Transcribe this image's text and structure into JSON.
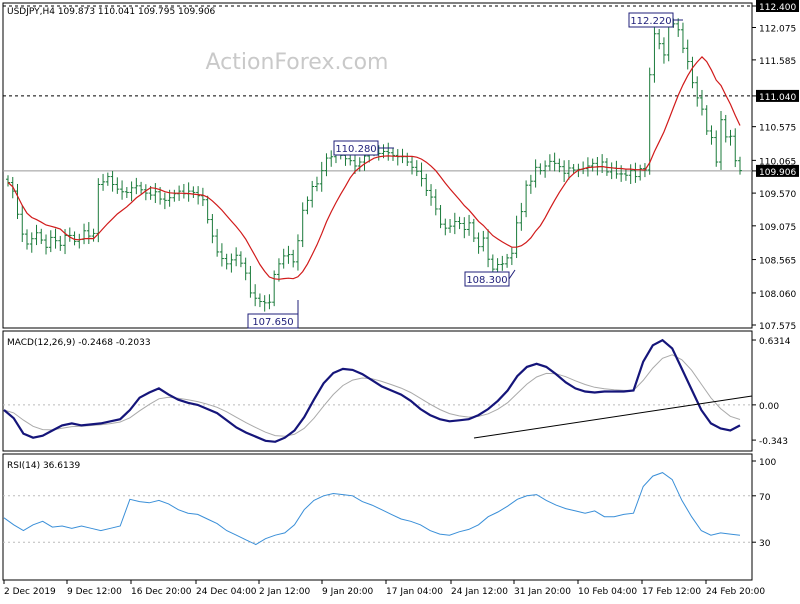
{
  "chart_data": [
    {
      "type": "candlestick",
      "header": "USDJPY,H4  109.873 110.041 109.795 109.906",
      "watermark": "ActionForex.com",
      "y_ticks": [
        "112.400",
        "112.075",
        "111.585",
        "111.040",
        "110.575",
        "110.065",
        "109.906",
        "109.570",
        "109.075",
        "108.565",
        "108.060",
        "107.575"
      ],
      "y_tick_values": [
        112.4,
        112.075,
        111.585,
        111.04,
        110.575,
        110.065,
        109.906,
        109.57,
        109.075,
        108.565,
        108.06,
        107.575
      ],
      "y_range": [
        107.575,
        112.4
      ],
      "highlighted_levels": [
        112.4,
        111.04,
        109.906
      ],
      "current_price": 109.906,
      "callouts": [
        {
          "label": "112.220",
          "value": 112.22
        },
        {
          "label": "110.280",
          "value": 110.28
        },
        {
          "label": "107.650",
          "value": 107.65
        },
        {
          "label": "108.300",
          "value": 108.3
        }
      ],
      "close_series": [
        109.73,
        109.6,
        109.25,
        108.95,
        108.8,
        108.88,
        108.97,
        108.86,
        108.75,
        108.9,
        108.85,
        108.78,
        108.93,
        108.93,
        108.84,
        108.87,
        109.0,
        108.92,
        108.96,
        109.7,
        109.74,
        109.82,
        109.7,
        109.63,
        109.59,
        109.58,
        109.65,
        109.68,
        109.62,
        109.57,
        109.54,
        109.59,
        109.48,
        109.46,
        109.5,
        109.56,
        109.6,
        109.56,
        109.6,
        109.58,
        109.53,
        109.47,
        109.17,
        108.92,
        108.68,
        108.58,
        108.5,
        108.56,
        108.63,
        108.51,
        108.36,
        108.06,
        107.98,
        107.93,
        107.91,
        107.92,
        108.34,
        108.5,
        108.62,
        108.64,
        108.53,
        108.85,
        109.31,
        109.46,
        109.67,
        109.71,
        109.91,
        110.1,
        110.12,
        110.2,
        110.14,
        110.09,
        110.06,
        109.98,
        110.04,
        110.13,
        110.19,
        110.21,
        110.17,
        110.2,
        110.18,
        110.14,
        110.12,
        110.12,
        110.04,
        109.96,
        109.9,
        109.79,
        109.61,
        109.51,
        109.33,
        109.1,
        109.04,
        109.07,
        109.14,
        109.11,
        109.02,
        109.12,
        108.89,
        108.76,
        108.89,
        108.57,
        108.42,
        108.49,
        108.5,
        108.59,
        108.66,
        109.12,
        109.29,
        109.69,
        109.75,
        109.96,
        109.91,
        109.98,
        110.05,
        110.02,
        109.97,
        109.87,
        109.95,
        109.92,
        109.93,
        109.94,
        109.98,
        110.02,
        109.97,
        110.04,
        109.89,
        109.95,
        109.86,
        109.86,
        109.84,
        109.91,
        109.82,
        109.94,
        109.92,
        111.36,
        111.98,
        111.83,
        111.66,
        112.15,
        112.13,
        112.04,
        111.76,
        111.56,
        111.24,
        111.01,
        110.84,
        110.51,
        110.41,
        110.04,
        110.68,
        110.42,
        110.43,
        110.06,
        109.91
      ],
      "ma_series_visible": true,
      "x_ticks": [
        "2 Dec 2019",
        "9 Dec 12:00",
        "16 Dec 20:00",
        "24 Dec 04:00",
        "2 Jan 12:00",
        "9 Jan 20:00",
        "17 Jan 04:00",
        "24 Jan 12:00",
        "31 Jan 20:00",
        "10 Feb 04:00",
        "17 Feb 12:00",
        "24 Feb 20:00"
      ]
    },
    {
      "type": "line",
      "header": "MACD(12,26,9) -0.2468 -0.2033",
      "y_ticks": [
        "0.6314",
        "0.00",
        "-0.343"
      ],
      "y_range": [
        -0.42,
        0.69
      ],
      "macd_series": [
        -0.05,
        -0.13,
        -0.28,
        -0.32,
        -0.3,
        -0.25,
        -0.2,
        -0.18,
        -0.2,
        -0.19,
        -0.18,
        -0.16,
        -0.14,
        -0.05,
        0.07,
        0.12,
        0.16,
        0.1,
        0.05,
        0.02,
        0.0,
        -0.04,
        -0.08,
        -0.15,
        -0.22,
        -0.27,
        -0.31,
        -0.35,
        -0.36,
        -0.32,
        -0.25,
        -0.12,
        0.05,
        0.21,
        0.31,
        0.35,
        0.34,
        0.3,
        0.24,
        0.18,
        0.14,
        0.1,
        0.04,
        -0.04,
        -0.1,
        -0.14,
        -0.16,
        -0.15,
        -0.14,
        -0.1,
        -0.04,
        0.04,
        0.14,
        0.28,
        0.37,
        0.4,
        0.37,
        0.3,
        0.22,
        0.16,
        0.13,
        0.12,
        0.13,
        0.13,
        0.13,
        0.14,
        0.42,
        0.58,
        0.63,
        0.55,
        0.35,
        0.15,
        -0.05,
        -0.18,
        -0.23,
        -0.25,
        -0.2
      ],
      "signal_series_visible": true,
      "trendline": true
    },
    {
      "type": "line",
      "header": "RSI(14) 36.6139",
      "y_ticks": [
        "100",
        "70",
        "30"
      ],
      "y_range": [
        0,
        100
      ],
      "rsi_series": [
        51,
        45,
        40,
        45,
        48,
        43,
        44,
        42,
        44,
        42,
        40,
        42,
        44,
        67,
        65,
        64,
        66,
        63,
        58,
        55,
        54,
        50,
        46,
        40,
        36,
        32,
        28,
        33,
        36,
        38,
        45,
        58,
        66,
        70,
        72,
        71,
        70,
        65,
        62,
        58,
        54,
        50,
        48,
        45,
        40,
        37,
        36,
        39,
        41,
        45,
        52,
        56,
        61,
        67,
        70,
        71,
        66,
        62,
        59,
        57,
        55,
        57,
        52,
        52,
        54,
        55,
        78,
        87,
        90,
        84,
        66,
        52,
        40,
        36,
        38,
        37,
        36
      ]
    }
  ]
}
